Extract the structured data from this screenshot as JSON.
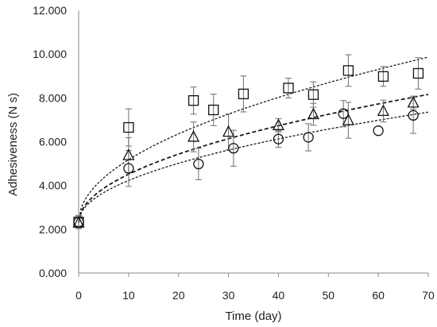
{
  "chart_data": {
    "type": "scatter",
    "title": "",
    "xlabel": "Time (day)",
    "ylabel": "Adhesiveness (N s)",
    "xlim": [
      0,
      70
    ],
    "ylim": [
      0,
      12
    ],
    "x_ticks": [
      0,
      10,
      20,
      30,
      40,
      50,
      60,
      70
    ],
    "y_ticks": [
      0,
      2,
      4,
      6,
      8,
      10,
      12
    ],
    "x_tick_labels": [
      "0",
      "10",
      "20",
      "30",
      "40",
      "50",
      "60",
      "70"
    ],
    "y_tick_labels": [
      "0.000",
      "2.000",
      "4.000",
      "6.000",
      "8.000",
      "10.000",
      "12.000"
    ],
    "grid": false,
    "legend": "none",
    "series": [
      {
        "marker": "square",
        "x": [
          0,
          10,
          23,
          27,
          33,
          42,
          47,
          54,
          61,
          68
        ],
        "y": [
          2.33,
          6.65,
          7.88,
          7.45,
          8.18,
          8.45,
          8.15,
          9.25,
          8.98,
          9.12
        ],
        "error": [
          0.25,
          0.85,
          0.62,
          0.72,
          0.82,
          0.45,
          0.58,
          0.72,
          0.45,
          0.72
        ],
        "fit": {
          "a": 2.33,
          "b": 0.9,
          "p": 0.5
        }
      },
      {
        "marker": "triangle",
        "x": [
          0,
          10,
          23,
          30,
          40,
          47,
          54,
          61,
          67
        ],
        "y": [
          2.3,
          5.38,
          6.22,
          6.45,
          6.75,
          7.25,
          6.98,
          7.4,
          7.78
        ],
        "error": [
          0.25,
          0.8,
          0.68,
          0.82,
          0.3,
          0.5,
          0.82,
          0.5,
          0.3
        ],
        "fit": {
          "a": 2.3,
          "b": 0.7,
          "p": 0.5
        }
      },
      {
        "marker": "circle",
        "x": [
          0,
          10,
          24,
          31,
          40,
          46,
          53,
          60,
          67
        ],
        "y": [
          2.33,
          4.78,
          4.98,
          5.7,
          6.12,
          6.2,
          7.28,
          6.5,
          7.2
        ],
        "error": [
          0.3,
          0.82,
          0.72,
          0.82,
          0.38,
          0.62,
          0.6,
          0.0,
          0.82
        ],
        "fit": {
          "a": 2.33,
          "b": 0.6,
          "p": 0.5
        }
      }
    ]
  }
}
